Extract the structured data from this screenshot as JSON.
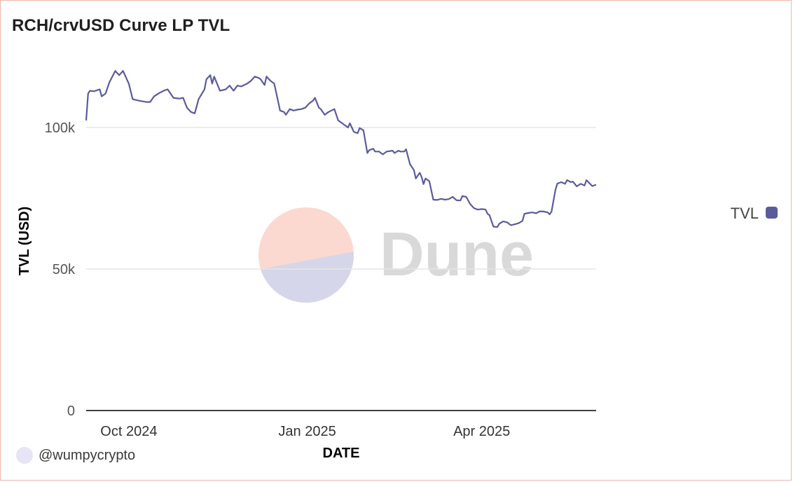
{
  "title": "RCH/crvUSD Curve LP TVL",
  "credit": "@wumpycrypto",
  "watermark": "Dune",
  "colors": {
    "line": "#5b5b9c",
    "grid": "#e5e5e5",
    "axis": "#000000",
    "watermark_text": "#d9d9d9",
    "watermark_top": "#fbd9d1",
    "watermark_bottom": "#d6d6ea"
  },
  "chart_data": {
    "type": "line",
    "title": "RCH/crvUSD Curve LP TVL",
    "xlabel": "DATE",
    "ylabel": "TVL (USD)",
    "ylim": [
      0,
      125000
    ],
    "yticks": [
      {
        "value": 0,
        "label": "0"
      },
      {
        "value": 50000,
        "label": "50k"
      },
      {
        "value": 100000,
        "label": "100k"
      }
    ],
    "xlim": [
      "2024-09-09",
      "2025-05-30"
    ],
    "xticks": [
      {
        "value": "2024-10-01",
        "label": "Oct 2024"
      },
      {
        "value": "2025-01-01",
        "label": "Jan 2025"
      },
      {
        "value": "2025-04-01",
        "label": "Apr 2025"
      }
    ],
    "grid": true,
    "legend": "right",
    "series": [
      {
        "name": "TVL",
        "color": "#5b5b9c",
        "points": [
          [
            "2024-09-09",
            102500
          ],
          [
            "2024-09-10",
            112000
          ],
          [
            "2024-09-11",
            113000
          ],
          [
            "2024-09-13",
            112800
          ],
          [
            "2024-09-16",
            113500
          ],
          [
            "2024-09-17",
            111000
          ],
          [
            "2024-09-19",
            112000
          ],
          [
            "2024-09-21",
            116000
          ],
          [
            "2024-09-24",
            120000
          ],
          [
            "2024-09-26",
            118500
          ],
          [
            "2024-09-28",
            120000
          ],
          [
            "2024-10-01",
            115500
          ],
          [
            "2024-10-03",
            110000
          ],
          [
            "2024-10-06",
            109500
          ],
          [
            "2024-10-10",
            109000
          ],
          [
            "2024-10-12",
            109000
          ],
          [
            "2024-10-14",
            111000
          ],
          [
            "2024-10-17",
            112300
          ],
          [
            "2024-10-19",
            113000
          ],
          [
            "2024-10-21",
            113500
          ],
          [
            "2024-10-24",
            110500
          ],
          [
            "2024-10-27",
            110200
          ],
          [
            "2024-10-29",
            110500
          ],
          [
            "2024-10-31",
            107000
          ],
          [
            "2024-11-02",
            105500
          ],
          [
            "2024-11-04",
            105000
          ],
          [
            "2024-11-06",
            110000
          ],
          [
            "2024-11-09",
            113500
          ],
          [
            "2024-11-10",
            117000
          ],
          [
            "2024-11-12",
            118500
          ],
          [
            "2024-11-13",
            115500
          ],
          [
            "2024-11-14",
            118000
          ],
          [
            "2024-11-17",
            113000
          ],
          [
            "2024-11-20",
            113500
          ],
          [
            "2024-11-22",
            114800
          ],
          [
            "2024-11-24",
            113000
          ],
          [
            "2024-11-26",
            114800
          ],
          [
            "2024-11-28",
            114500
          ],
          [
            "2024-12-01",
            115500
          ],
          [
            "2024-12-03",
            116500
          ],
          [
            "2024-12-05",
            118000
          ],
          [
            "2024-12-07",
            117500
          ],
          [
            "2024-12-08",
            117000
          ],
          [
            "2024-12-10",
            115000
          ],
          [
            "2024-12-11",
            118000
          ],
          [
            "2024-12-13",
            116500
          ],
          [
            "2024-12-15",
            115500
          ],
          [
            "2024-12-18",
            106000
          ],
          [
            "2024-12-20",
            105500
          ],
          [
            "2024-12-21",
            104500
          ],
          [
            "2024-12-23",
            106500
          ],
          [
            "2024-12-25",
            106000
          ],
          [
            "2024-12-27",
            106300
          ],
          [
            "2024-12-29",
            106500
          ],
          [
            "2024-12-31",
            107000
          ],
          [
            "2025-01-02",
            108500
          ],
          [
            "2025-01-04",
            109500
          ],
          [
            "2025-01-05",
            110500
          ],
          [
            "2025-01-07",
            107000
          ],
          [
            "2025-01-08",
            106500
          ],
          [
            "2025-01-10",
            104500
          ],
          [
            "2025-01-12",
            105500
          ],
          [
            "2025-01-15",
            106500
          ],
          [
            "2025-01-17",
            102500
          ],
          [
            "2025-01-19",
            101500
          ],
          [
            "2025-01-22",
            100000
          ],
          [
            "2025-01-23",
            101500
          ],
          [
            "2025-01-25",
            98500
          ],
          [
            "2025-01-27",
            98000
          ],
          [
            "2025-01-28",
            99800
          ],
          [
            "2025-01-30",
            99000
          ],
          [
            "2025-02-01",
            91000
          ],
          [
            "2025-02-02",
            92000
          ],
          [
            "2025-02-04",
            92500
          ],
          [
            "2025-02-05",
            91500
          ],
          [
            "2025-02-07",
            91500
          ],
          [
            "2025-02-09",
            90500
          ],
          [
            "2025-02-11",
            91500
          ],
          [
            "2025-02-14",
            91800
          ],
          [
            "2025-02-15",
            91000
          ],
          [
            "2025-02-17",
            91800
          ],
          [
            "2025-02-18",
            91500
          ],
          [
            "2025-02-20",
            91500
          ],
          [
            "2025-02-21",
            92300
          ],
          [
            "2025-02-23",
            87000
          ],
          [
            "2025-02-25",
            85000
          ],
          [
            "2025-02-26",
            82000
          ],
          [
            "2025-02-28",
            84000
          ],
          [
            "2025-03-01",
            82500
          ],
          [
            "2025-03-02",
            80000
          ],
          [
            "2025-03-03",
            82000
          ],
          [
            "2025-03-05",
            81000
          ],
          [
            "2025-03-07",
            74500
          ],
          [
            "2025-03-09",
            74400
          ],
          [
            "2025-03-11",
            74800
          ],
          [
            "2025-03-13",
            74500
          ],
          [
            "2025-03-15",
            74700
          ],
          [
            "2025-03-17",
            75500
          ],
          [
            "2025-03-19",
            74300
          ],
          [
            "2025-03-21",
            74200
          ],
          [
            "2025-03-22",
            75800
          ],
          [
            "2025-03-24",
            75500
          ],
          [
            "2025-03-26",
            73000
          ],
          [
            "2025-03-28",
            71500
          ],
          [
            "2025-03-30",
            71000
          ],
          [
            "2025-04-01",
            71200
          ],
          [
            "2025-04-03",
            71000
          ],
          [
            "2025-04-04",
            69500
          ],
          [
            "2025-04-05",
            69000
          ],
          [
            "2025-04-07",
            65000
          ],
          [
            "2025-04-09",
            64800
          ],
          [
            "2025-04-10",
            66000
          ],
          [
            "2025-04-12",
            66800
          ],
          [
            "2025-04-14",
            66500
          ],
          [
            "2025-04-16",
            65500
          ],
          [
            "2025-04-18",
            65800
          ],
          [
            "2025-04-20",
            66200
          ],
          [
            "2025-04-22",
            67000
          ],
          [
            "2025-04-23",
            69500
          ],
          [
            "2025-04-25",
            69800
          ],
          [
            "2025-04-27",
            70000
          ],
          [
            "2025-04-29",
            69700
          ],
          [
            "2025-05-01",
            70400
          ],
          [
            "2025-05-03",
            70300
          ],
          [
            "2025-05-05",
            70000
          ],
          [
            "2025-05-06",
            69300
          ],
          [
            "2025-05-07",
            70300
          ],
          [
            "2025-05-09",
            78000
          ],
          [
            "2025-05-10",
            80200
          ],
          [
            "2025-05-12",
            80700
          ],
          [
            "2025-05-14",
            80100
          ],
          [
            "2025-05-15",
            81400
          ],
          [
            "2025-05-17",
            80700
          ],
          [
            "2025-05-18",
            80900
          ],
          [
            "2025-05-20",
            79200
          ],
          [
            "2025-05-22",
            80100
          ],
          [
            "2025-05-24",
            79500
          ],
          [
            "2025-05-25",
            81400
          ],
          [
            "2025-05-27",
            80000
          ],
          [
            "2025-05-28",
            79300
          ],
          [
            "2025-05-30",
            79800
          ]
        ]
      }
    ]
  }
}
